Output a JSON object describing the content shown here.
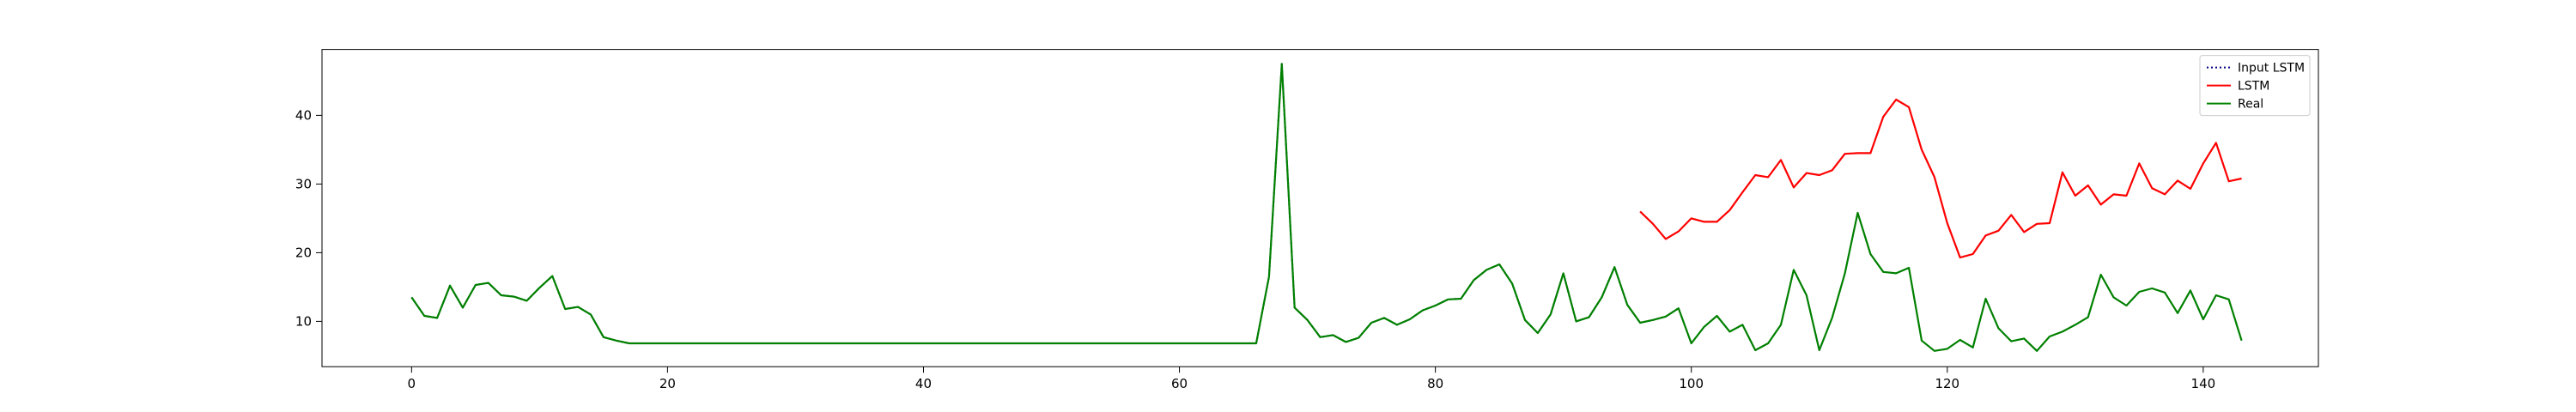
{
  "chart_data": {
    "type": "line",
    "x_ticks": [
      0,
      20,
      40,
      60,
      80,
      100,
      120,
      140
    ],
    "y_ticks": [
      10,
      20,
      30,
      40
    ],
    "xlim": [
      -7,
      149
    ],
    "ylim": [
      3.4,
      49.6
    ],
    "grid": false,
    "legend_position": "top-right",
    "series": [
      {
        "name": "Input LSTM",
        "color": "#000080",
        "style": "dotted",
        "x_start": 0,
        "values": [
          13.5,
          10.8,
          10.5,
          15.2,
          12.0,
          15.3,
          15.6,
          13.8,
          13.6,
          13.0,
          14.9,
          16.6,
          11.8,
          12.1,
          11.0,
          7.7,
          7.2,
          6.8,
          6.8,
          6.8,
          6.8,
          6.8,
          6.8,
          6.8,
          6.8,
          6.8,
          6.8,
          6.8,
          6.8,
          6.8,
          6.8,
          6.8,
          6.8,
          6.8,
          6.8,
          6.8,
          6.8,
          6.8,
          6.8,
          6.8,
          6.8,
          6.8,
          6.8,
          6.8,
          6.8,
          6.8,
          6.8,
          6.8,
          6.8,
          6.8,
          6.8,
          6.8,
          6.8,
          6.8,
          6.8,
          6.8,
          6.8,
          6.8,
          6.8,
          6.8,
          6.8,
          6.8,
          6.8,
          6.8,
          6.8,
          6.8,
          6.8,
          16.5,
          47.5,
          12.0,
          10.2,
          7.7,
          8.0,
          7.0,
          7.6,
          9.8,
          10.5,
          9.5,
          10.3,
          11.6,
          12.3,
          13.2,
          13.3,
          16.0,
          17.5,
          18.3,
          15.5,
          10.2,
          8.3,
          11.0,
          17.0,
          10.0,
          10.6,
          13.5,
          17.9,
          12.4,
          9.8,
          10.2,
          10.7,
          11.9
        ]
      },
      {
        "name": "LSTM",
        "color": "#ff0000",
        "style": "solid",
        "x_start": 96,
        "values": [
          26.0,
          24.2,
          22.0,
          23.1,
          25.0,
          24.5,
          24.5,
          26.2,
          28.8,
          31.3,
          31.0,
          33.5,
          29.5,
          31.6,
          31.3,
          32.0,
          34.4,
          34.5,
          34.5,
          39.8,
          42.3,
          41.2,
          35.0,
          31.0,
          24.3,
          19.3,
          19.8,
          22.5,
          23.2,
          25.5,
          23.0,
          24.2,
          24.3,
          31.7,
          28.3,
          29.8,
          27.0,
          28.5,
          28.3,
          33.0,
          29.4,
          28.5,
          30.5,
          29.3,
          33.0,
          36.0,
          30.4,
          30.8
        ]
      },
      {
        "name": "Real",
        "color": "#008000",
        "style": "solid",
        "x_start": 0,
        "values": [
          13.5,
          10.8,
          10.5,
          15.2,
          12.0,
          15.3,
          15.6,
          13.8,
          13.6,
          13.0,
          14.9,
          16.6,
          11.8,
          12.1,
          11.0,
          7.7,
          7.2,
          6.8,
          6.8,
          6.8,
          6.8,
          6.8,
          6.8,
          6.8,
          6.8,
          6.8,
          6.8,
          6.8,
          6.8,
          6.8,
          6.8,
          6.8,
          6.8,
          6.8,
          6.8,
          6.8,
          6.8,
          6.8,
          6.8,
          6.8,
          6.8,
          6.8,
          6.8,
          6.8,
          6.8,
          6.8,
          6.8,
          6.8,
          6.8,
          6.8,
          6.8,
          6.8,
          6.8,
          6.8,
          6.8,
          6.8,
          6.8,
          6.8,
          6.8,
          6.8,
          6.8,
          6.8,
          6.8,
          6.8,
          6.8,
          6.8,
          6.8,
          16.5,
          47.5,
          12.0,
          10.2,
          7.7,
          8.0,
          7.0,
          7.6,
          9.8,
          10.5,
          9.5,
          10.3,
          11.6,
          12.3,
          13.2,
          13.3,
          16.0,
          17.5,
          18.3,
          15.5,
          10.2,
          8.3,
          11.0,
          17.0,
          10.0,
          10.6,
          13.5,
          17.9,
          12.4,
          9.8,
          10.2,
          10.7,
          11.9,
          6.8,
          9.2,
          10.8,
          8.5,
          9.5,
          5.8,
          6.8,
          9.5,
          17.5,
          13.8,
          5.8,
          10.5,
          17.0,
          25.8,
          19.8,
          17.2,
          17.0,
          17.8,
          7.2,
          5.7,
          6.0,
          7.3,
          6.2,
          13.3,
          9.0,
          7.1,
          7.5,
          5.7,
          7.8,
          8.5,
          9.5,
          10.6,
          16.8,
          13.5,
          12.3,
          14.3,
          14.8,
          14.2,
          11.2,
          14.5,
          10.3,
          13.8,
          13.2,
          7.2
        ]
      }
    ]
  }
}
